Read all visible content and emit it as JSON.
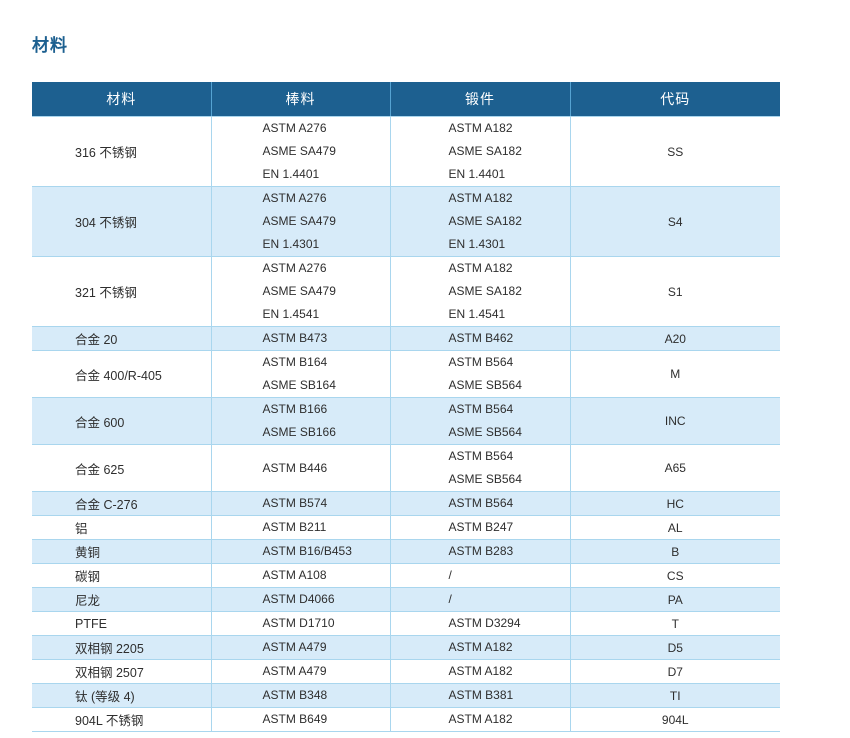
{
  "page": {
    "title": "材料"
  },
  "colors": {
    "header_bg": "#1d6090",
    "stripe_row_bg": "#d7ebf9",
    "border": "#a9d6ee",
    "title_text": "#1d6090",
    "header_text": "#ffffff",
    "body_text": "#2e2e2e"
  },
  "table": {
    "headers": [
      "材料",
      "棒料",
      "锻件",
      "代码"
    ],
    "rows": [
      {
        "material": "316 不锈钢",
        "bar": [
          "ASTM A276",
          "ASME SA479",
          "EN 1.4401"
        ],
        "forging": [
          "ASTM A182",
          "ASME SA182",
          "EN 1.4401"
        ],
        "code": "SS"
      },
      {
        "material": "304 不锈钢",
        "bar": [
          "ASTM A276",
          "ASME SA479",
          "EN 1.4301"
        ],
        "forging": [
          "ASTM A182",
          "ASME SA182",
          "EN 1.4301"
        ],
        "code": "S4"
      },
      {
        "material": "321 不锈钢",
        "bar": [
          "ASTM A276",
          "ASME SA479",
          "EN 1.4541"
        ],
        "forging": [
          "ASTM A182",
          "ASME SA182",
          "EN 1.4541"
        ],
        "code": "S1"
      },
      {
        "material": "合金 20",
        "bar": [
          "ASTM B473"
        ],
        "forging": [
          "ASTM B462"
        ],
        "code": "A20"
      },
      {
        "material": "合金 400/R-405",
        "bar": [
          "ASTM B164",
          "ASME SB164"
        ],
        "forging": [
          "ASTM B564",
          "ASME SB564"
        ],
        "code": "M"
      },
      {
        "material": "合金 600",
        "bar": [
          "ASTM B166",
          "ASME SB166"
        ],
        "forging": [
          "ASTM B564",
          "ASME SB564"
        ],
        "code": "INC"
      },
      {
        "material": "合金 625",
        "bar": [
          "ASTM B446"
        ],
        "forging": [
          "ASTM B564",
          "ASME SB564"
        ],
        "code": "A65"
      },
      {
        "material": "合金 C-276",
        "bar": [
          "ASTM B574"
        ],
        "forging": [
          "ASTM B564"
        ],
        "code": "HC"
      },
      {
        "material": "铝",
        "bar": [
          "ASTM B211"
        ],
        "forging": [
          "ASTM B247"
        ],
        "code": "AL"
      },
      {
        "material": "黄铜",
        "bar": [
          "ASTM B16/B453"
        ],
        "forging": [
          "ASTM B283"
        ],
        "code": "B"
      },
      {
        "material": "碳钢",
        "bar": [
          "ASTM A108"
        ],
        "forging": [
          "/"
        ],
        "code": "CS"
      },
      {
        "material": "尼龙",
        "bar": [
          "ASTM D4066"
        ],
        "forging": [
          "/"
        ],
        "code": "PA"
      },
      {
        "material": "PTFE",
        "bar": [
          "ASTM D1710"
        ],
        "forging": [
          "ASTM D3294"
        ],
        "code": "T"
      },
      {
        "material": "双相钢 2205",
        "bar": [
          "ASTM A479"
        ],
        "forging": [
          "ASTM A182"
        ],
        "code": "D5"
      },
      {
        "material": "双相钢 2507",
        "bar": [
          "ASTM A479"
        ],
        "forging": [
          "ASTM A182"
        ],
        "code": "D7"
      },
      {
        "material": "钛 (等级 4)",
        "bar": [
          "ASTM B348"
        ],
        "forging": [
          "ASTM B381"
        ],
        "code": "TI"
      },
      {
        "material": "904L 不锈钢",
        "bar": [
          "ASTM B649"
        ],
        "forging": [
          "ASTM A182"
        ],
        "code": "904L"
      }
    ]
  }
}
